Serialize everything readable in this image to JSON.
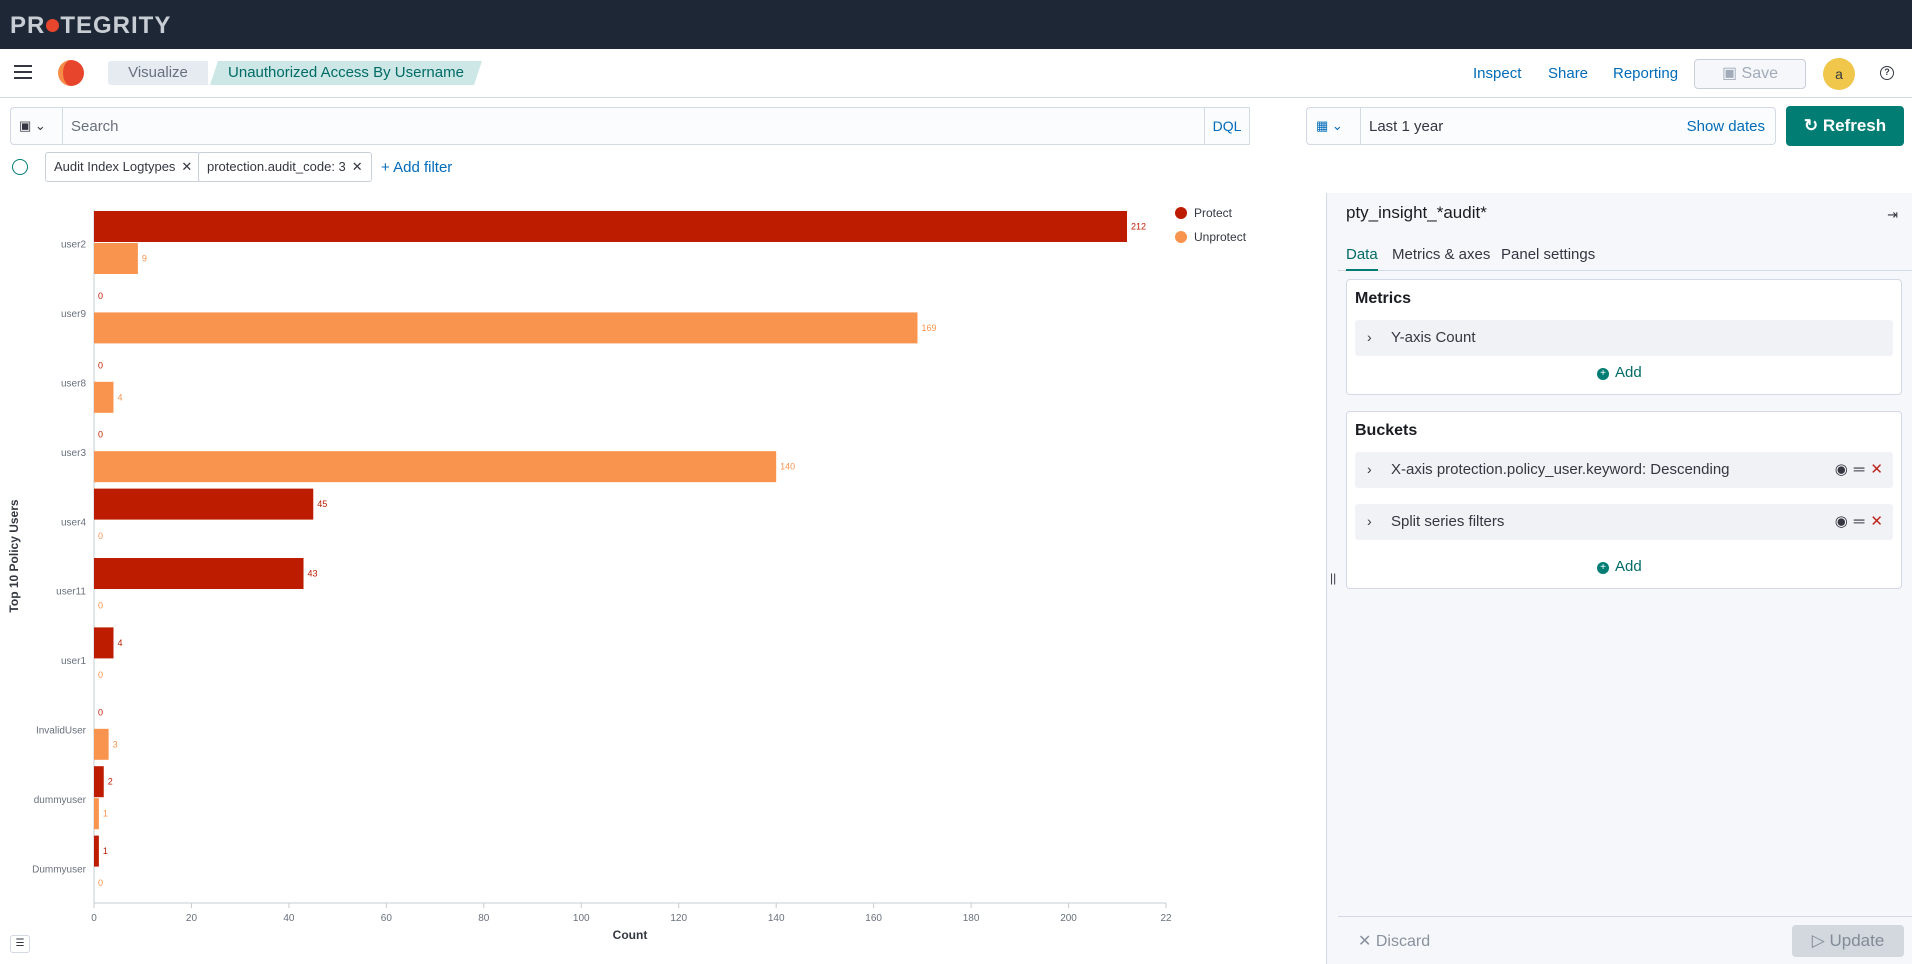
{
  "brand": {
    "logo_text_pre": "PR",
    "logo_text_post": "TEGRITY"
  },
  "breadcrumbs": [
    "Visualize",
    "Unauthorized Access By Username"
  ],
  "header_links": [
    "Inspect",
    "Share",
    "Reporting"
  ],
  "save_label": "Save",
  "avatar_initial": "a",
  "query": {
    "placeholder": "Search",
    "language": "DQL",
    "date_range": "Last 1 year",
    "show_dates": "Show dates",
    "refresh": "Refresh"
  },
  "filters": [
    {
      "label": "Audit Index Logtypes"
    },
    {
      "label": "protection.audit_code: 3"
    }
  ],
  "add_filter": "+ Add filter",
  "sidebar": {
    "index_pattern": "pty_insight_*audit*",
    "tabs": [
      "Data",
      "Metrics & axes",
      "Panel settings"
    ],
    "metrics_title": "Metrics",
    "metric_row": "Y-axis Count",
    "add_label": "Add",
    "buckets_title": "Buckets",
    "bucket_rows": [
      "X-axis protection.policy_user.keyword: Descending",
      "Split series filters"
    ],
    "discard": "Discard",
    "update": "Update"
  },
  "colors": {
    "protect": "#bd1c00",
    "unprotect": "#f9944f",
    "accent": "#017d73"
  },
  "chart_data": {
    "type": "bar",
    "orientation": "horizontal",
    "categories": [
      "user2",
      "user9",
      "user8",
      "user3",
      "user4",
      "user11",
      "user1",
      "InvalidUser",
      "dummyuser",
      "Dummyuser"
    ],
    "series": [
      {
        "name": "Protect",
        "values": [
          212,
          0,
          0,
          0,
          45,
          43,
          4,
          0,
          2,
          1
        ]
      },
      {
        "name": "Unprotect",
        "values": [
          9,
          169,
          4,
          140,
          0,
          0,
          0,
          3,
          1,
          0
        ]
      }
    ],
    "xlabel": "Count",
    "ylabel": "Top 10 Policy Users",
    "xticks": [
      "0",
      "20",
      "40",
      "60",
      "80",
      "100",
      "120",
      "140",
      "160",
      "180",
      "200",
      "22"
    ],
    "xlim": [
      0,
      220
    ],
    "legend": "top-right"
  }
}
